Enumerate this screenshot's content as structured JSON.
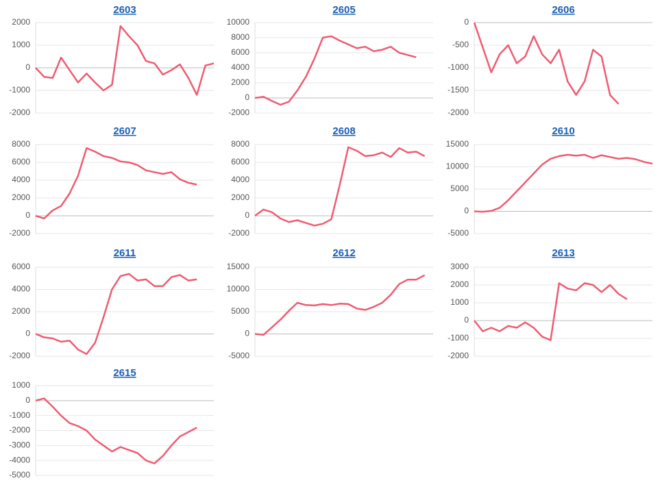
{
  "chart_data": [
    {
      "type": "line",
      "title": "2603",
      "color": "#ef5a72",
      "grid": true,
      "ylim": [
        -2000,
        2000
      ],
      "yticks": [
        -2000,
        -1000,
        0,
        1000,
        2000
      ],
      "values": [
        0,
        -400,
        -450,
        450,
        -100,
        -650,
        -250,
        -650,
        -1000,
        -750,
        1850,
        1400,
        1000,
        300,
        200,
        -300,
        -100,
        150,
        -450,
        -1200,
        100,
        200
      ]
    },
    {
      "type": "line",
      "title": "2605",
      "color": "#ef5a72",
      "grid": true,
      "ylim": [
        -2000,
        10000
      ],
      "yticks": [
        -2000,
        0,
        2000,
        4000,
        6000,
        8000,
        10000
      ],
      "values": [
        0,
        150,
        -400,
        -900,
        -500,
        1000,
        2800,
        5200,
        8000,
        8200,
        7600,
        7100,
        6600,
        6800,
        6200,
        6400,
        6800,
        6000,
        5700,
        5400
      ]
    },
    {
      "type": "line",
      "title": "2606",
      "color": "#ef5a72",
      "grid": true,
      "ylim": [
        -2000,
        0
      ],
      "yticks": [
        -2000,
        -1500,
        -1000,
        -500,
        0
      ],
      "values": [
        0,
        -550,
        -1100,
        -700,
        -500,
        -900,
        -750,
        -300,
        -700,
        -900,
        -600,
        -1300,
        -1600,
        -1300,
        -600,
        -750,
        -1600,
        -1800
      ]
    },
    {
      "type": "line",
      "title": "2607",
      "color": "#ef5a72",
      "grid": true,
      "ylim": [
        -2000,
        8000
      ],
      "yticks": [
        -2000,
        0,
        2000,
        4000,
        6000,
        8000
      ],
      "values": [
        0,
        -300,
        600,
        1100,
        2500,
        4500,
        7600,
        7200,
        6700,
        6500,
        6100,
        6000,
        5700,
        5100,
        4900,
        4700,
        4900,
        4100,
        3700,
        3500
      ]
    },
    {
      "type": "line",
      "title": "2608",
      "color": "#ef5a72",
      "grid": true,
      "ylim": [
        -2000,
        8000
      ],
      "yticks": [
        -2000,
        0,
        2000,
        4000,
        6000,
        8000
      ],
      "values": [
        0,
        700,
        400,
        -300,
        -700,
        -500,
        -800,
        -1100,
        -900,
        -400,
        3500,
        7700,
        7300,
        6700,
        6800,
        7100,
        6600,
        7600,
        7100,
        7200,
        6700
      ]
    },
    {
      "type": "line",
      "title": "2610",
      "color": "#ef5a72",
      "grid": true,
      "ylim": [
        -5000,
        15000
      ],
      "yticks": [
        -5000,
        0,
        5000,
        10000,
        15000
      ],
      "values": [
        0,
        -100,
        100,
        800,
        2500,
        4500,
        6500,
        8500,
        10500,
        11800,
        12400,
        12700,
        12500,
        12700,
        12000,
        12600,
        12200,
        11800,
        12000,
        11700,
        11100,
        10700
      ]
    },
    {
      "type": "line",
      "title": "2611",
      "color": "#ef5a72",
      "grid": true,
      "ylim": [
        -2000,
        6000
      ],
      "yticks": [
        -2000,
        0,
        2000,
        4000,
        6000
      ],
      "values": [
        0,
        -300,
        -400,
        -700,
        -600,
        -1400,
        -1800,
        -800,
        1500,
        4000,
        5200,
        5400,
        4800,
        4900,
        4300,
        4300,
        5100,
        5300,
        4800,
        4900
      ]
    },
    {
      "type": "line",
      "title": "2612",
      "color": "#ef5a72",
      "grid": true,
      "ylim": [
        -5000,
        15000
      ],
      "yticks": [
        -5000,
        0,
        5000,
        10000,
        15000
      ],
      "values": [
        0,
        -200,
        1500,
        3200,
        5200,
        7000,
        6500,
        6400,
        6700,
        6500,
        6800,
        6700,
        5700,
        5400,
        6100,
        7000,
        8800,
        11200,
        12200,
        12200,
        13200
      ]
    },
    {
      "type": "line",
      "title": "2613",
      "color": "#ef5a72",
      "grid": true,
      "ylim": [
        -2000,
        3000
      ],
      "yticks": [
        -2000,
        -1000,
        0,
        1000,
        2000,
        3000
      ],
      "values": [
        0,
        -600,
        -400,
        -600,
        -300,
        -400,
        -100,
        -400,
        -900,
        -1100,
        2100,
        1800,
        1700,
        2100,
        2000,
        1600,
        2000,
        1500,
        1200
      ]
    },
    {
      "type": "line",
      "title": "2615",
      "color": "#ef5a72",
      "grid": true,
      "ylim": [
        -5000,
        1000
      ],
      "yticks": [
        -5000,
        -4000,
        -3000,
        -2000,
        -1000,
        0,
        1000
      ],
      "values": [
        0,
        150,
        -400,
        -1000,
        -1500,
        -1700,
        -2000,
        -2600,
        -3000,
        -3400,
        -3100,
        -3300,
        -3500,
        -4000,
        -4200,
        -3700,
        -3000,
        -2400,
        -2100,
        -1800
      ]
    }
  ]
}
